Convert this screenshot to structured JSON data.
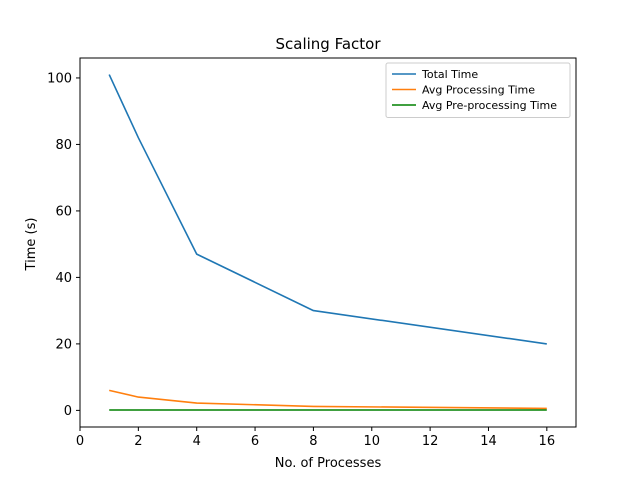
{
  "chart_data": {
    "type": "line",
    "title": "Scaling Factor",
    "xlabel": "No. of Processes",
    "ylabel": "Time (s)",
    "xlim": [
      0,
      17
    ],
    "ylim": [
      -5,
      106
    ],
    "xticks": [
      0,
      2,
      4,
      6,
      8,
      10,
      12,
      14,
      16
    ],
    "yticks": [
      0,
      20,
      40,
      60,
      80,
      100
    ],
    "grid": false,
    "legend_position": "top-right",
    "series": [
      {
        "name": "Total Time",
        "color": "#1f77b4",
        "x": [
          1,
          2,
          4,
          8,
          16
        ],
        "y": [
          101,
          82,
          47,
          30,
          20
        ]
      },
      {
        "name": "Avg Processing Time",
        "color": "#ff7f0e",
        "x": [
          1,
          2,
          4,
          8,
          16
        ],
        "y": [
          6,
          4,
          2.2,
          1.2,
          0.6
        ]
      },
      {
        "name": "Avg Pre-processing Time",
        "color": "#008000",
        "x": [
          1,
          2,
          4,
          8,
          16
        ],
        "y": [
          0.1,
          0.1,
          0.1,
          0.1,
          0.1
        ]
      }
    ]
  }
}
